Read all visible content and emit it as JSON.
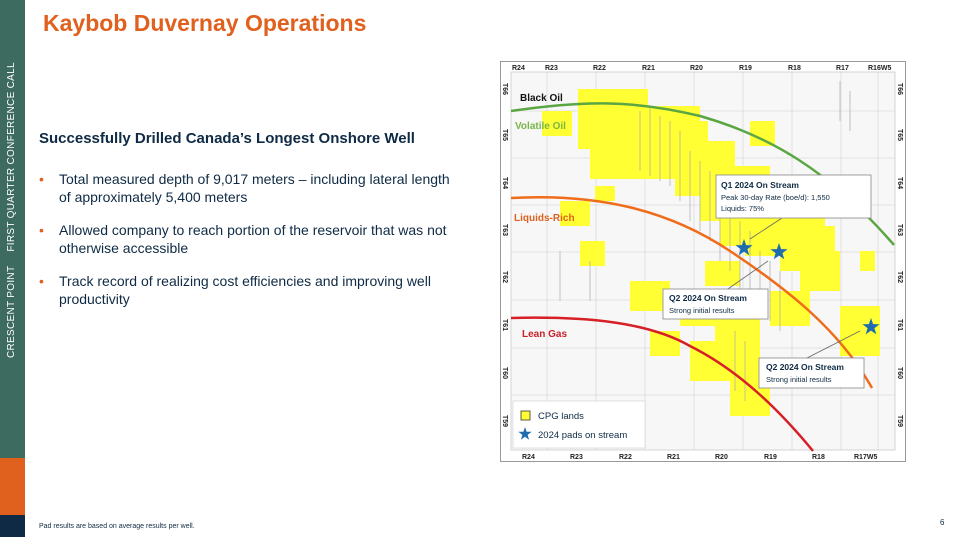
{
  "slide": {
    "title": "Kaybob Duvernay Operations",
    "subtitle": "Successfully Drilled Canada’s Longest Onshore Well",
    "bullets": [
      "Total measured depth of 9,017 meters – including lateral length of approximately 5,400 meters",
      "Allowed company to reach portion of the reservoir that was not otherwise accessible",
      "Track record of realizing cost efficiencies and improving well productivity"
    ],
    "footnote": "Pad results are based on average results per well.",
    "page_number": "6"
  },
  "sidebar": {
    "company": "CRESCENT POINT",
    "event": "FIRST QUARTER CONFERENCE CALL",
    "colors": {
      "main": "#3d6b5f",
      "accent": "#e0601e",
      "navy": "#0f2a44"
    }
  },
  "map": {
    "ranges_top": [
      "R24",
      "R23",
      "R22",
      "R21",
      "R20",
      "R19",
      "R18",
      "R17",
      "R16W5"
    ],
    "ranges_bottom": [
      "R24",
      "R23",
      "R22",
      "R21",
      "R20",
      "R19",
      "R18",
      "R17W5"
    ],
    "townships": [
      "T66",
      "T65",
      "T64",
      "T63",
      "T62",
      "T61",
      "T60",
      "T59"
    ],
    "zones": {
      "black_oil": "Black Oil",
      "volatile_oil": "Volatile Oil",
      "liquids_rich": "Liquids-Rich",
      "lean_gas": "Lean Gas"
    },
    "callouts": {
      "q1": {
        "title": "Q1 2024 On Stream",
        "line1": "Peak 30-day Rate (boe/d): 1,550",
        "line2": "Liquids: 75%"
      },
      "q2a": {
        "title": "Q2 2024 On Stream",
        "line1": "Strong initial results"
      },
      "q2b": {
        "title": "Q2 2024 On Stream",
        "line1": "Strong initial results"
      }
    },
    "legend": {
      "lands": "CPG lands",
      "pads": "2024 pads on stream"
    },
    "colors": {
      "lands": "#ffff33",
      "star": "#1f6bb0",
      "black_oil_line": "#5aa642",
      "liquids_line": "#ef6c1a",
      "lean_gas_line": "#d61f26",
      "volatile_label": "#7ab648",
      "liquids_label": "#e0601e",
      "lean_label": "#c8202a"
    }
  }
}
